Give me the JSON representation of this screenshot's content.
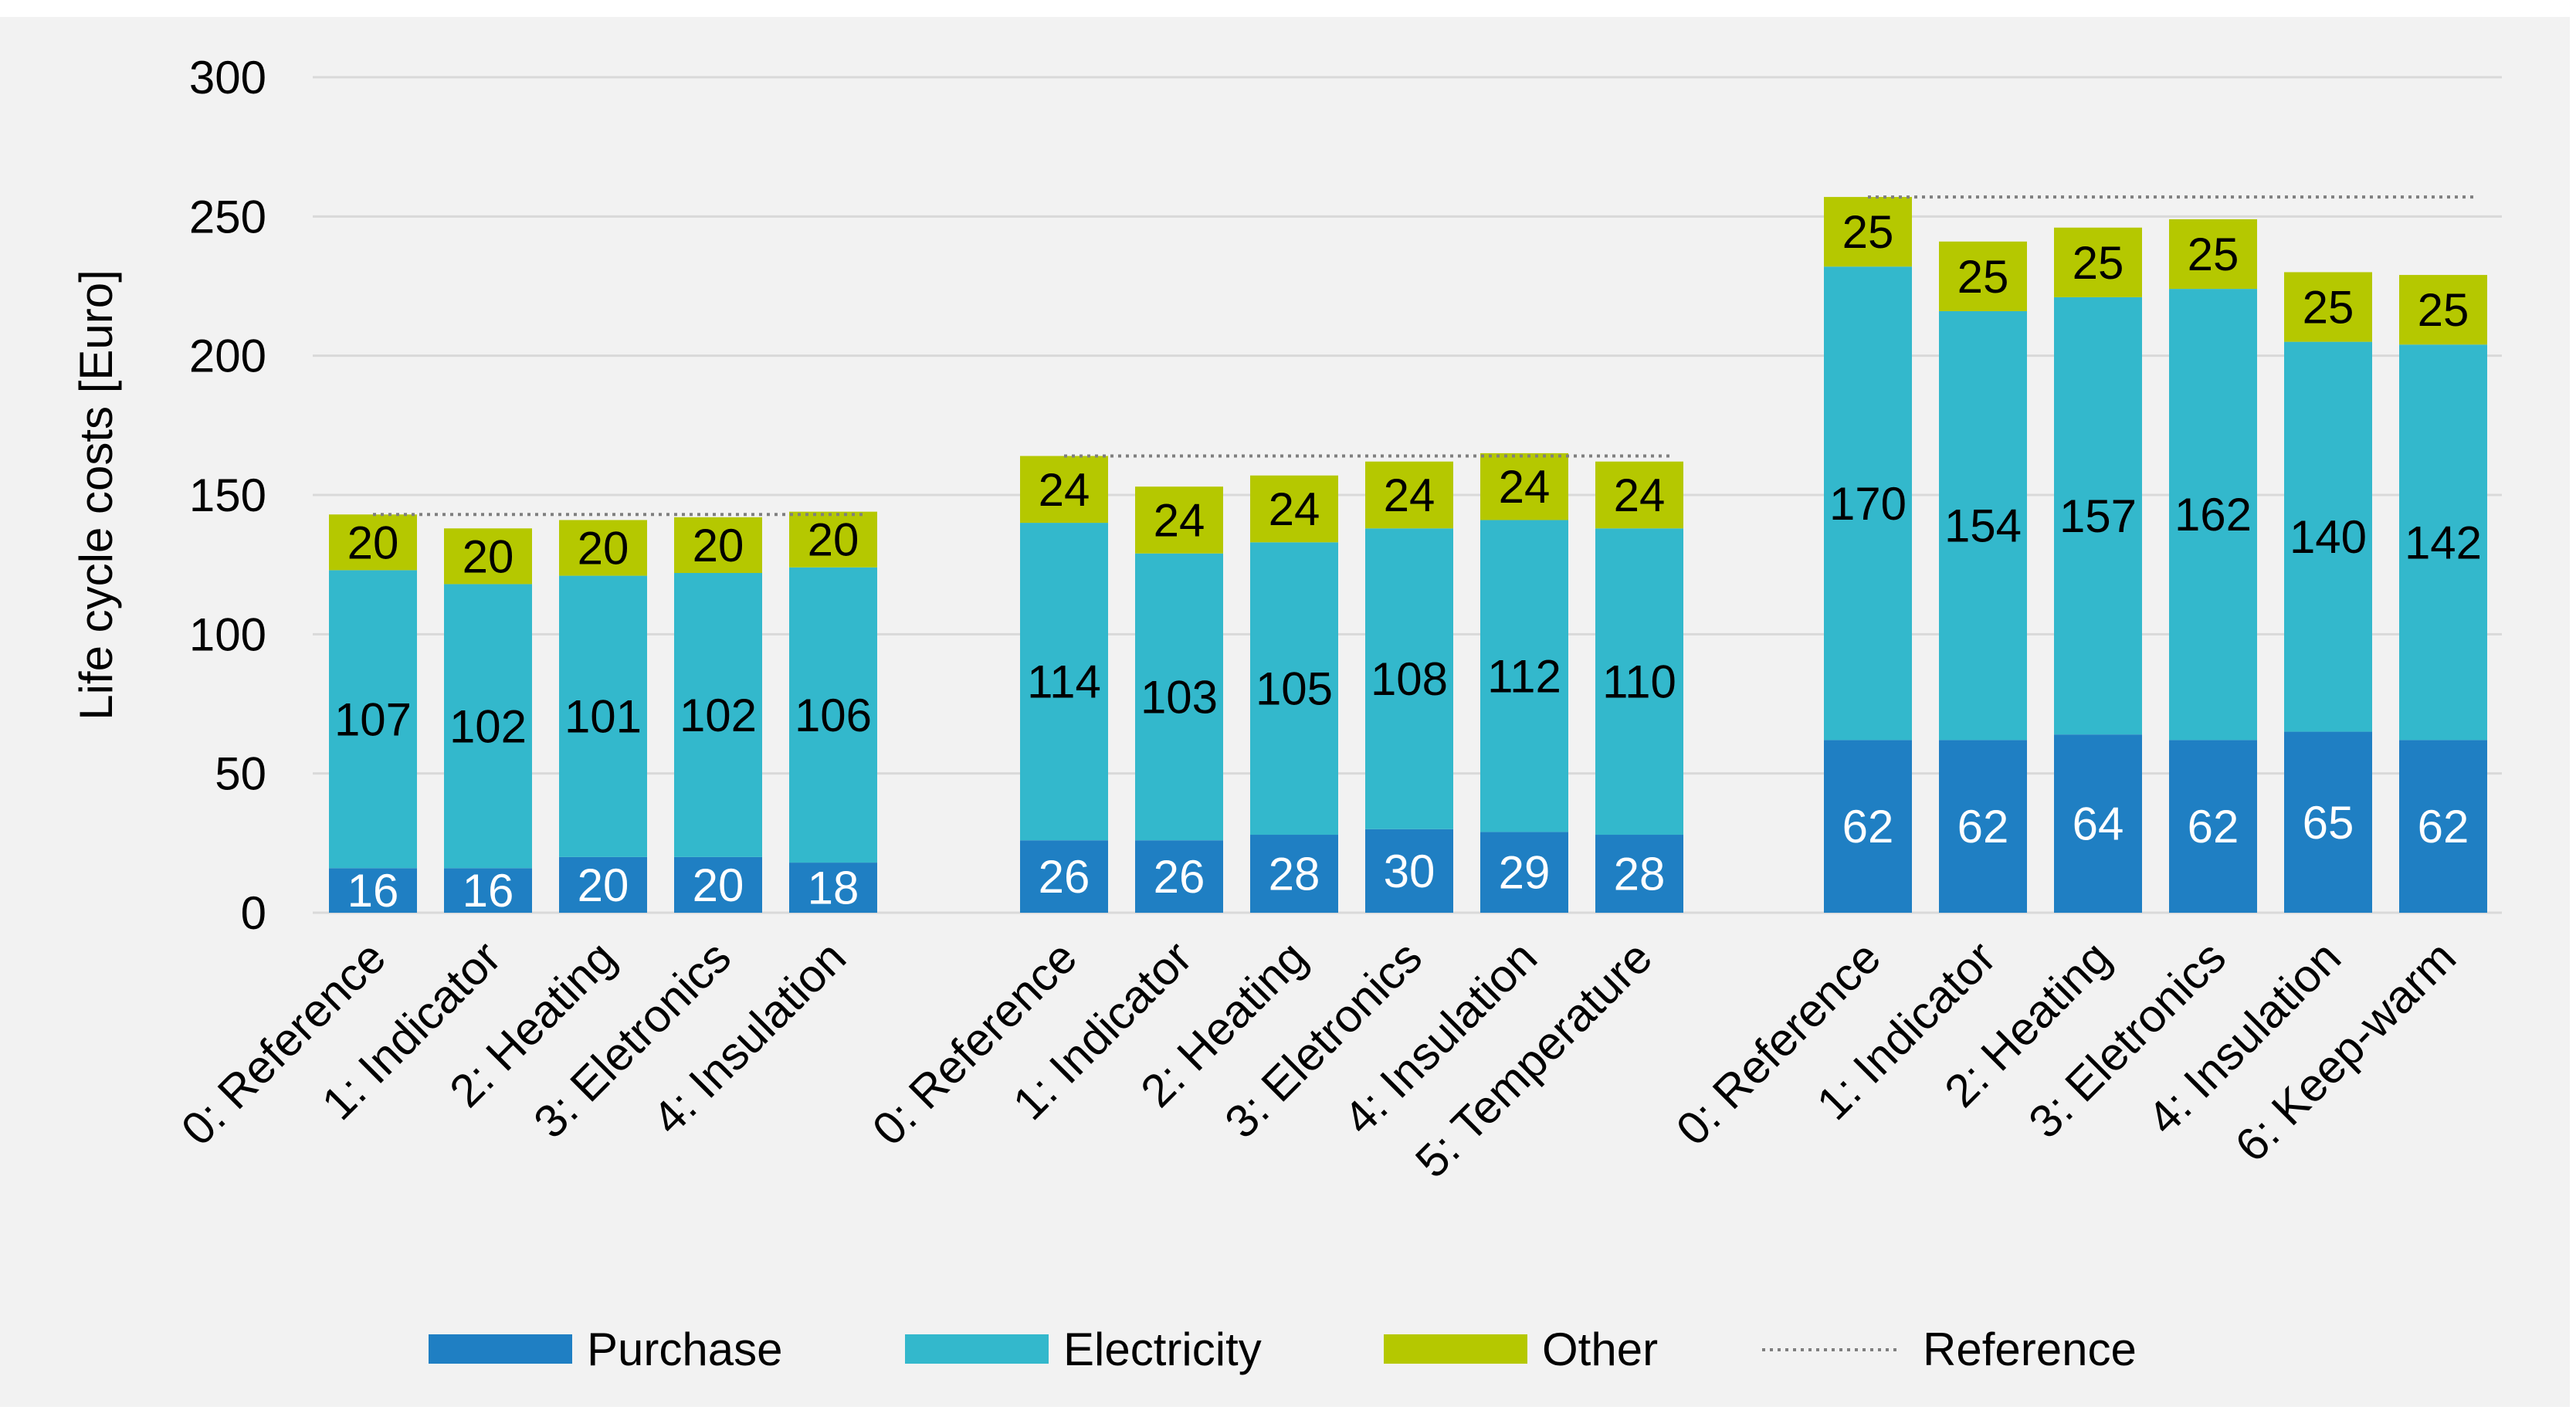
{
  "chart_data": {
    "type": "bar",
    "stacked": true,
    "ylabel": "Life cycle costs [Euro]",
    "ylim": [
      0,
      300
    ],
    "yticks": [
      0,
      50,
      100,
      150,
      200,
      250,
      300
    ],
    "ytick_labels": [
      "0",
      "50",
      "100",
      "150",
      "200",
      "250",
      "300"
    ],
    "grid": true,
    "legend_position": "bottom",
    "legend": [
      {
        "name": "Purchase",
        "color": "#1f7fc3",
        "style": "box"
      },
      {
        "name": "Electricity",
        "color": "#33b8cc",
        "style": "box"
      },
      {
        "name": "Other",
        "color": "#b5c800",
        "style": "box"
      },
      {
        "name": "Reference",
        "color": "#7f7f7f",
        "style": "dotted-line"
      }
    ],
    "colors": {
      "purchase": "#1f7fc3",
      "electricity": "#33b8cc",
      "other": "#b5c800",
      "reference": "#7f7f7f",
      "background": "#f2f2f2",
      "gridline": "#d9d9d9"
    },
    "groups": [
      {
        "reference_total": 143,
        "categories": [
          "0: Reference",
          "1: Indicator",
          "2: Heating",
          "3: Eletronics",
          "4: Insulation"
        ],
        "series": [
          {
            "name": "Purchase",
            "values": [
              16,
              16,
              20,
              20,
              18
            ],
            "labels": [
              "16",
              "16",
              "20",
              "20",
              "18"
            ]
          },
          {
            "name": "Electricity",
            "values": [
              107,
              102,
              101,
              102,
              106
            ],
            "labels": [
              "107",
              "102",
              "101",
              "102",
              "106"
            ]
          },
          {
            "name": "Other",
            "values": [
              20,
              20,
              20,
              20,
              20
            ],
            "labels": [
              "20",
              "20",
              "20",
              "20",
              "20"
            ]
          }
        ]
      },
      {
        "reference_total": 164,
        "categories": [
          "0: Reference",
          "1: Indicator",
          "2: Heating",
          "3: Eletronics",
          "4: Insulation",
          "5: Temperature"
        ],
        "series": [
          {
            "name": "Purchase",
            "values": [
              26,
              26,
              28,
              30,
              29,
              28
            ],
            "labels": [
              "26",
              "26",
              "28",
              "30",
              "29",
              "28"
            ]
          },
          {
            "name": "Electricity",
            "values": [
              114,
              103,
              105,
              108,
              112,
              110
            ],
            "labels": [
              "114",
              "103",
              "105",
              "108",
              "112",
              "110"
            ]
          },
          {
            "name": "Other",
            "values": [
              24,
              24,
              24,
              24,
              24,
              24
            ],
            "labels": [
              "24",
              "24",
              "24",
              "24",
              "24",
              "24"
            ]
          }
        ]
      },
      {
        "reference_total": 257,
        "categories": [
          "0: Reference",
          "1: Indicator",
          "2: Heating",
          "3: Eletronics",
          "4: Insulation",
          "6: Keep-warm"
        ],
        "series": [
          {
            "name": "Purchase",
            "values": [
              62,
              62,
              64,
              62,
              65,
              62
            ],
            "labels": [
              "62",
              "62",
              "64",
              "62",
              "65",
              "62"
            ]
          },
          {
            "name": "Electricity",
            "values": [
              170,
              154,
              157,
              162,
              140,
              142
            ],
            "labels": [
              "170",
              "154",
              "157",
              "162",
              "140",
              "142"
            ]
          },
          {
            "name": "Other",
            "values": [
              25,
              25,
              25,
              25,
              25,
              25
            ],
            "labels": [
              "25",
              "25",
              "25",
              "25",
              "25",
              "25"
            ]
          }
        ]
      }
    ]
  }
}
